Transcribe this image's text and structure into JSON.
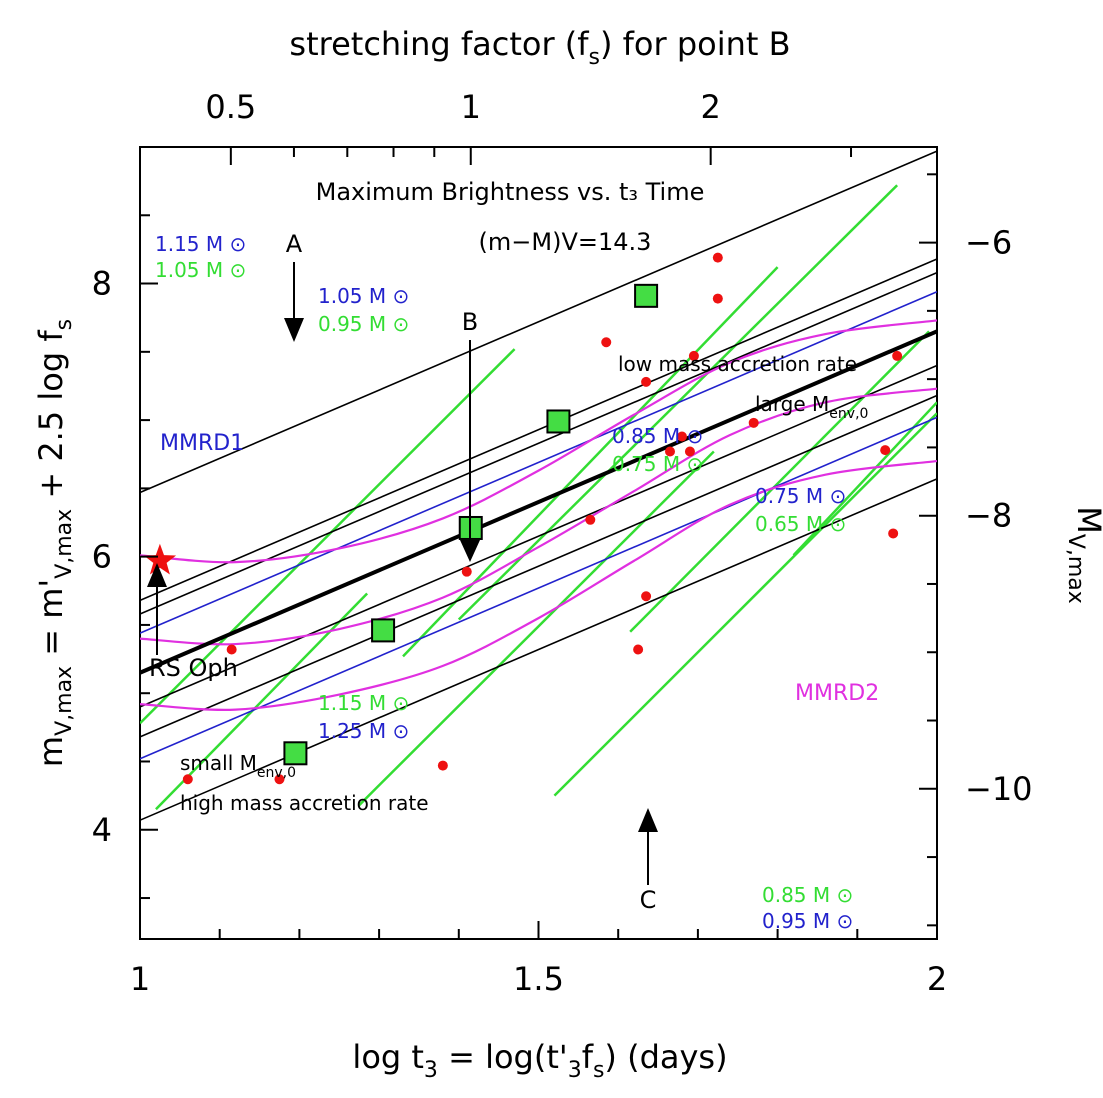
{
  "chart_data": {
    "type": "scatter",
    "title": "Maximum Brightness vs. t₃ Time",
    "distance_modulus_label": "(m−M)V=14.3",
    "xlabel": {
      "base": "log t",
      "sub1": "3",
      "mid": " = log(t'",
      "sub2": "3",
      "mid2": "f",
      "sub3": "s",
      "end": ") (days)"
    },
    "ylabel_left": {
      "base": "m",
      "sub1": "V,max",
      "mid": " = m'",
      "sub2": "V,max",
      "end": " + 2.5 log f",
      "sub3": "s"
    },
    "ylabel_right": {
      "base": "M",
      "sub": "V,max"
    },
    "xlabel_top": {
      "base": "stretching factor (f",
      "sub": "s",
      "end": ") for point B"
    },
    "xlim": [
      1.0,
      2.0
    ],
    "ylim_left": [
      9.0,
      3.2
    ],
    "ylim_right": [
      -5.3,
      -11.1
    ],
    "x_ticks": [
      {
        "value": 1.0,
        "label": "1"
      },
      {
        "value": 1.5,
        "label": "1.5"
      },
      {
        "value": 2.0,
        "label": "2"
      }
    ],
    "y_left_ticks": [
      {
        "value": 4,
        "label": "4"
      },
      {
        "value": 6,
        "label": "6"
      },
      {
        "value": 8,
        "label": "8"
      }
    ],
    "y_right_ticks": [
      {
        "value": -10,
        "label": "−10"
      },
      {
        "value": -8,
        "label": "−8"
      },
      {
        "value": -6,
        "label": "−6"
      }
    ],
    "top_ticks": [
      {
        "value": 0.5,
        "label": "0.5"
      },
      {
        "value": 1,
        "label": "1"
      },
      {
        "value": 2,
        "label": "2"
      }
    ],
    "grid": false,
    "colors": {
      "black": "#000000",
      "blue": "#2222cc",
      "green": "#33dd33",
      "magenta": "#e030e0",
      "red": "#ee1111",
      "square_fill": "#44dd44"
    },
    "series": [
      {
        "name": "novae",
        "marker": "red-dot",
        "points": [
          [
            1.06,
            4.37
          ],
          [
            1.175,
            4.37
          ],
          [
            1.38,
            4.47
          ],
          [
            1.115,
            5.32
          ],
          [
            1.41,
            5.89
          ],
          [
            1.565,
            6.27
          ],
          [
            1.625,
            5.32
          ],
          [
            1.635,
            5.71
          ],
          [
            1.665,
            6.77
          ],
          [
            1.68,
            6.88
          ],
          [
            1.69,
            6.77
          ],
          [
            1.77,
            6.98
          ],
          [
            1.935,
            6.78
          ],
          [
            1.945,
            6.17
          ],
          [
            1.585,
            7.57
          ],
          [
            1.635,
            7.28
          ],
          [
            1.695,
            7.47
          ],
          [
            1.725,
            7.89
          ],
          [
            1.725,
            8.19
          ],
          [
            1.95,
            7.47
          ]
        ]
      },
      {
        "name": "points A, B, C",
        "marker": "green-square",
        "points": [
          [
            1.195,
            4.56
          ],
          [
            1.305,
            5.46
          ],
          [
            1.415,
            6.21
          ],
          [
            1.525,
            6.99
          ],
          [
            1.635,
            7.91
          ]
        ]
      },
      {
        "name": "RS Oph",
        "marker": "red-star",
        "points": [
          [
            1.025,
            5.97
          ]
        ]
      },
      {
        "name": "MMRD1",
        "style": "thick-black-line",
        "points": [
          [
            1.0,
            5.15
          ],
          [
            2.0,
            7.65
          ]
        ]
      },
      {
        "name": "black lines",
        "style": "black-line",
        "lines": [
          [
            [
              1.0,
              4.07
            ],
            [
              2.0,
              6.57
            ]
          ],
          [
            [
              1.0,
              4.68
            ],
            [
              2.0,
              7.18
            ]
          ],
          [
            [
              1.0,
              4.9
            ],
            [
              2.0,
              7.4
            ]
          ],
          [
            [
              1.0,
              5.58
            ],
            [
              2.0,
              8.08
            ]
          ],
          [
            [
              1.0,
              5.68
            ],
            [
              2.0,
              8.18
            ]
          ],
          [
            [
              1.0,
              6.47
            ],
            [
              2.0,
              8.97
            ]
          ]
        ]
      },
      {
        "name": "blue lines",
        "style": "blue-line",
        "lines": [
          [
            [
              1.0,
              4.52
            ],
            [
              2.0,
              7.02
            ]
          ],
          [
            [
              1.0,
              5.44
            ],
            [
              2.0,
              7.94
            ]
          ]
        ]
      },
      {
        "name": "green lines",
        "style": "green-line",
        "lines": [
          [
            [
              1.02,
              4.15
            ],
            [
              1.285,
              5.73
            ]
          ],
          [
            [
              1.0,
              4.78
            ],
            [
              1.47,
              7.52
            ]
          ],
          [
            [
              1.275,
              4.18
            ],
            [
              1.72,
              6.77
            ]
          ],
          [
            [
              1.33,
              5.27
            ],
            [
              1.8,
              8.12
            ]
          ],
          [
            [
              1.4,
              5.54
            ],
            [
              1.95,
              8.72
            ]
          ],
          [
            [
              1.52,
              4.25
            ],
            [
              2.0,
              7.05
            ]
          ],
          [
            [
              1.615,
              5.45
            ],
            [
              1.99,
              7.65
            ]
          ],
          [
            [
              1.82,
              6.01
            ],
            [
              2.0,
              7.13
            ]
          ]
        ]
      },
      {
        "name": "MMRD2",
        "style": "magenta-curve",
        "curves": [
          [
            [
              1.0,
              4.92
            ],
            [
              1.12,
              4.88
            ],
            [
              1.25,
              4.99
            ],
            [
              1.38,
              5.2
            ],
            [
              1.5,
              5.55
            ],
            [
              1.62,
              5.97
            ],
            [
              1.74,
              6.38
            ],
            [
              1.86,
              6.6
            ],
            [
              2.0,
              6.7
            ]
          ],
          [
            [
              1.0,
              5.4
            ],
            [
              1.12,
              5.36
            ],
            [
              1.25,
              5.47
            ],
            [
              1.38,
              5.7
            ],
            [
              1.5,
              6.07
            ],
            [
              1.62,
              6.48
            ],
            [
              1.74,
              6.89
            ],
            [
              1.86,
              7.13
            ],
            [
              2.0,
              7.23
            ]
          ],
          [
            [
              1.0,
              6.01
            ],
            [
              1.12,
              5.96
            ],
            [
              1.25,
              6.06
            ],
            [
              1.38,
              6.28
            ],
            [
              1.5,
              6.63
            ],
            [
              1.62,
              7.04
            ],
            [
              1.74,
              7.42
            ],
            [
              1.86,
              7.63
            ],
            [
              2.0,
              7.73
            ]
          ]
        ]
      }
    ],
    "annotations": {
      "label_A": "A",
      "label_B": "B",
      "label_C": "C",
      "rs_oph": "RS Oph",
      "mmrd1": "MMRD1",
      "mmrd2": "MMRD2",
      "lowrate1": "low mass accretion rate",
      "lowrate2": "large M",
      "lowrate2_sub": "env,0",
      "highrate1": "small M",
      "highrate1_sub": "env,0",
      "highrate2": "high mass accretion rate",
      "mass_pairs": [
        {
          "blue": "1.15 M",
          "green": "1.05 M",
          "order": "blue-first"
        },
        {
          "blue": "1.05 M",
          "green": "0.95 M",
          "order": "blue-first"
        },
        {
          "blue": "0.85 M",
          "green": "0.75 M",
          "order": "blue-first"
        },
        {
          "blue": "0.75 M",
          "green": "0.65 M",
          "order": "blue-first"
        },
        {
          "blue": "1.25 M",
          "green": "1.15 M",
          "order": "green-first"
        },
        {
          "blue": "0.95 M",
          "green": "0.85 M",
          "order": "green-first"
        }
      ]
    }
  }
}
